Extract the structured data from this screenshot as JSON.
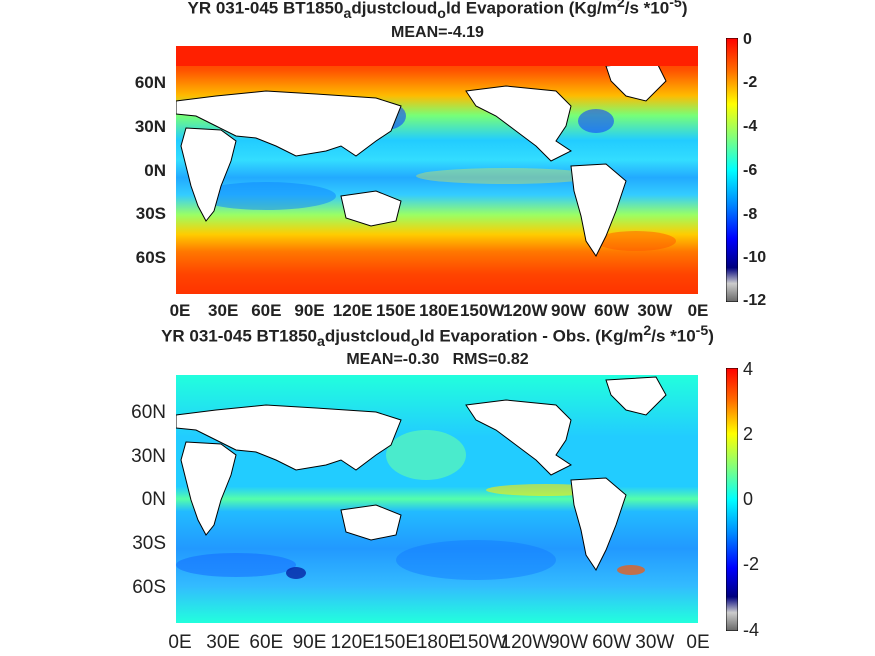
{
  "chart_data": [
    {
      "type": "heatmap",
      "title_parts": {
        "a": "YR 031-045 BT1850",
        "sub1": "a",
        "b": "djustcloud",
        "sub2": "o",
        "c": "ld  Evaporation (Kg/m",
        "sup1": "2",
        "d": "/s *10",
        "sup2": "-5",
        "e": ")"
      },
      "mean_label": "MEAN=-4.19",
      "lat_ticks": [
        "60N",
        "30N",
        "0N",
        "30S",
        "60S"
      ],
      "lon_ticks": [
        "0E",
        "30E",
        "60E",
        "90E",
        "120E",
        "150E",
        "180E",
        "150W",
        "120W",
        "90W",
        "60W",
        "30W",
        "0E"
      ],
      "colorbar_ticks": [
        "0",
        "-2",
        "-4",
        "-6",
        "-8",
        "-10",
        "-12"
      ],
      "colorbar_range": [
        -12,
        0
      ],
      "colormap": "jet",
      "grid": false
    },
    {
      "type": "heatmap",
      "title_parts": {
        "a": "YR 031-045 BT1850",
        "sub1": "a",
        "b": "djustcloud",
        "sub2": "o",
        "c": "ld Evaporation - Obs. (Kg/m",
        "sup1": "2",
        "d": "/s *10",
        "sup2": "-5",
        "e": ")"
      },
      "mean_label": "MEAN=-0.30   RMS=0.82",
      "lat_ticks": [
        "60N",
        "30N",
        "0N",
        "30S",
        "60S"
      ],
      "lon_ticks": [
        "0E",
        "30E",
        "60E",
        "90E",
        "120E",
        "150E",
        "180E",
        "150W",
        "120W",
        "90W",
        "60W",
        "30W",
        "0E"
      ],
      "colorbar_ticks": [
        "4",
        "2",
        "0",
        "-2",
        "-4"
      ],
      "colorbar_range": [
        -4,
        4
      ],
      "colormap": "jet",
      "grid": false
    }
  ]
}
